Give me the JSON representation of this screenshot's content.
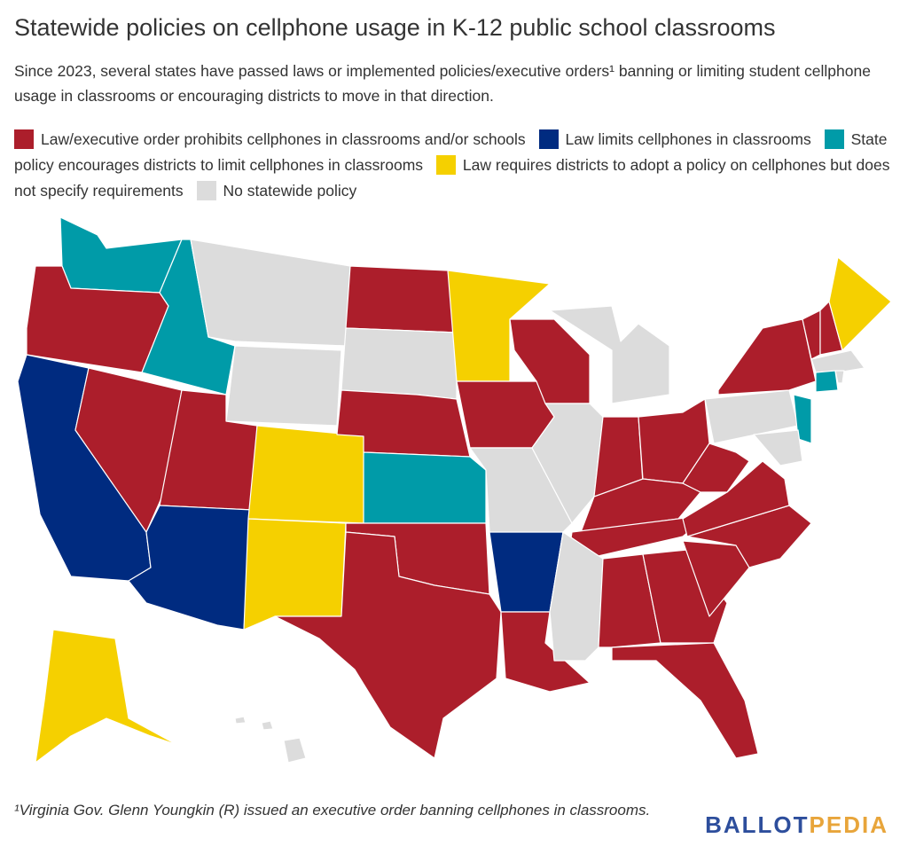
{
  "header": {
    "title": "Statewide policies on cellphone usage in K-12 public school classrooms",
    "subtitle": "Since 2023, several states have passed laws or implemented policies/executive orders¹ banning or limiting student cellphone usage in classrooms or encouraging districts to move in that direction."
  },
  "legend": [
    {
      "label": "Law/executive order prohibits cellphones in classrooms and/or schools",
      "color": "#ac1e2b"
    },
    {
      "label": "Law limits cellphones in classrooms",
      "color": "#002b80"
    },
    {
      "label": "State policy encourages districts to limit cellphones in classrooms",
      "color": "#009ba8"
    },
    {
      "label": "Law requires districts to adopt a policy on cellphones but does not specify requirements",
      "color": "#f5d000"
    },
    {
      "label": "No statewide policy",
      "color": "#dcdcdc"
    }
  ],
  "footnote": "¹Virginia Gov. Glenn Youngkin (R) issued an executive order banning cellphones in classrooms.",
  "brand": [
    "BALLOT",
    "PEDIA"
  ]
}
